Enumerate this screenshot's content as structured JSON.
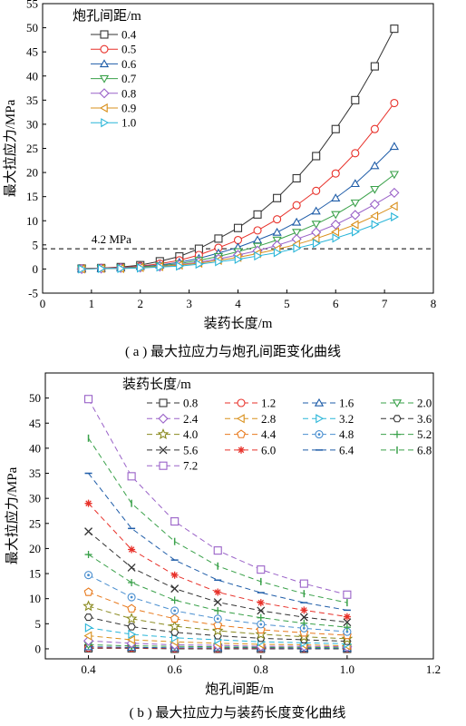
{
  "chart_data": [
    {
      "type": "line",
      "caption": "( a ) 最大拉应力与炮孔间距变化曲线",
      "xlabel": "装药长度/m",
      "ylabel": "最大拉应力/MPa",
      "xlim": [
        0,
        8
      ],
      "ylim": [
        -5,
        55
      ],
      "xticks": [
        0,
        1,
        2,
        3,
        4,
        5,
        6,
        7,
        8
      ],
      "yticks": [
        -5,
        0,
        5,
        10,
        15,
        20,
        25,
        30,
        35,
        40,
        45,
        50,
        55
      ],
      "legend_title": "炮孔间距/m",
      "legend_position": "top-left",
      "x": [
        0.8,
        1.2,
        1.6,
        2.0,
        2.4,
        2.8,
        3.2,
        3.6,
        4.0,
        4.4,
        4.8,
        5.2,
        5.6,
        6.0,
        6.4,
        6.8,
        7.2
      ],
      "series": [
        {
          "name": "0.4",
          "color": "#333333",
          "marker": "square",
          "values": [
            0.1,
            0.2,
            0.4,
            0.8,
            1.6,
            2.6,
            4.2,
            6.3,
            8.5,
            11.3,
            14.7,
            18.8,
            23.4,
            29.0,
            35.0,
            42.0,
            49.8
          ]
        },
        {
          "name": "0.5",
          "color": "#e8312a",
          "marker": "circle",
          "values": [
            0.1,
            0.2,
            0.3,
            0.6,
            1.1,
            1.8,
            2.9,
            4.4,
            6.0,
            8.0,
            10.3,
            13.2,
            16.2,
            19.8,
            24.0,
            29.0,
            34.4
          ]
        },
        {
          "name": "0.6",
          "color": "#1e5ca8",
          "marker": "triangle-up",
          "values": [
            0.0,
            0.1,
            0.2,
            0.5,
            0.8,
            1.4,
            2.2,
            3.3,
            4.5,
            6.0,
            7.6,
            9.7,
            12.0,
            14.7,
            17.7,
            21.4,
            25.4
          ]
        },
        {
          "name": "0.7",
          "color": "#3aa14a",
          "marker": "triangle-down",
          "values": [
            0.0,
            0.1,
            0.2,
            0.4,
            0.7,
            1.1,
            1.8,
            2.6,
            3.6,
            4.7,
            6.0,
            7.6,
            9.3,
            11.3,
            13.7,
            16.5,
            19.6
          ]
        },
        {
          "name": "0.8",
          "color": "#9a62c8",
          "marker": "diamond",
          "values": [
            0.0,
            0.1,
            0.2,
            0.3,
            0.5,
            0.9,
            1.4,
            2.1,
            2.9,
            3.8,
            4.9,
            6.2,
            7.6,
            9.2,
            11.2,
            13.4,
            15.8
          ]
        },
        {
          "name": "0.9",
          "color": "#d9901c",
          "marker": "triangle-left",
          "values": [
            0.0,
            0.1,
            0.1,
            0.3,
            0.5,
            0.8,
            1.2,
            1.8,
            2.4,
            3.2,
            4.1,
            5.1,
            6.3,
            7.7,
            9.2,
            11.0,
            13.0
          ]
        },
        {
          "name": "1.0",
          "color": "#29b5d8",
          "marker": "triangle-right",
          "values": [
            0.0,
            0.1,
            0.1,
            0.2,
            0.4,
            0.6,
            1.0,
            1.5,
            2.0,
            2.7,
            3.4,
            4.3,
            5.3,
            6.4,
            7.7,
            9.2,
            10.8
          ]
        }
      ],
      "annotations": [
        {
          "text": "4.2 MPa",
          "y": 4.2,
          "style": "dashed horizontal line"
        }
      ]
    },
    {
      "type": "line",
      "caption": "( b ) 最大拉应力与装药长度变化曲线",
      "xlabel": "炮孔间距/m",
      "ylabel": "最大拉应力/MPa",
      "xlim": [
        0.3,
        1.2
      ],
      "ylim": [
        -2,
        55
      ],
      "xticks": [
        0.4,
        0.6,
        0.8,
        1.0,
        1.2
      ],
      "yticks": [
        0,
        5,
        10,
        15,
        20,
        25,
        30,
        35,
        40,
        45,
        50
      ],
      "legend_title": "装药长度/m",
      "legend_position": "top",
      "x": [
        0.4,
        0.5,
        0.6,
        0.7,
        0.8,
        0.9,
        1.0
      ],
      "series": [
        {
          "name": "0.8",
          "color": "#333333",
          "marker": "square",
          "values": [
            0.1,
            0.1,
            0.0,
            0.0,
            0.0,
            0.0,
            0.0
          ]
        },
        {
          "name": "1.2",
          "color": "#e8312a",
          "marker": "circle",
          "values": [
            0.2,
            0.2,
            0.1,
            0.1,
            0.1,
            0.1,
            0.1
          ]
        },
        {
          "name": "1.6",
          "color": "#1e5ca8",
          "marker": "triangle-up",
          "values": [
            0.4,
            0.3,
            0.2,
            0.2,
            0.2,
            0.1,
            0.1
          ]
        },
        {
          "name": "2.0",
          "color": "#3aa14a",
          "marker": "triangle-down",
          "values": [
            0.8,
            0.6,
            0.5,
            0.4,
            0.3,
            0.3,
            0.2
          ]
        },
        {
          "name": "2.4",
          "color": "#9a62c8",
          "marker": "diamond",
          "values": [
            1.6,
            1.1,
            0.8,
            0.7,
            0.5,
            0.5,
            0.4
          ]
        },
        {
          "name": "2.8",
          "color": "#d9901c",
          "marker": "triangle-left",
          "values": [
            2.6,
            1.8,
            1.4,
            1.1,
            0.9,
            0.8,
            0.6
          ]
        },
        {
          "name": "3.2",
          "color": "#29b5d8",
          "marker": "triangle-right",
          "values": [
            4.2,
            2.9,
            2.2,
            1.8,
            1.4,
            1.2,
            1.0
          ]
        },
        {
          "name": "3.6",
          "color": "#333333",
          "marker": "hexagon",
          "values": [
            6.3,
            4.4,
            3.3,
            2.6,
            2.1,
            1.8,
            1.5
          ]
        },
        {
          "name": "4.0",
          "color": "#8a8a1f",
          "marker": "star",
          "values": [
            8.5,
            6.0,
            4.5,
            3.6,
            2.9,
            2.4,
            2.0
          ]
        },
        {
          "name": "4.4",
          "color": "#e87a1e",
          "marker": "pentagon",
          "values": [
            11.3,
            8.0,
            6.0,
            4.7,
            3.8,
            3.2,
            2.7
          ]
        },
        {
          "name": "4.8",
          "color": "#4a8fd0",
          "marker": "circle-dot",
          "values": [
            14.7,
            10.3,
            7.6,
            6.0,
            4.9,
            4.1,
            3.4
          ]
        },
        {
          "name": "5.2",
          "color": "#3aa14a",
          "marker": "plus",
          "values": [
            18.8,
            13.2,
            9.7,
            7.6,
            6.2,
            5.1,
            4.3
          ]
        },
        {
          "name": "5.6",
          "color": "#333333",
          "marker": "x",
          "values": [
            23.4,
            16.2,
            12.0,
            9.3,
            7.6,
            6.3,
            5.3
          ]
        },
        {
          "name": "6.0",
          "color": "#e8312a",
          "marker": "asterisk",
          "values": [
            29.0,
            19.8,
            14.7,
            11.3,
            9.2,
            7.7,
            6.4
          ]
        },
        {
          "name": "6.4",
          "color": "#1e5ca8",
          "marker": "hline",
          "values": [
            35.0,
            24.0,
            17.7,
            13.7,
            11.2,
            9.2,
            7.7
          ]
        },
        {
          "name": "6.8",
          "color": "#3aa14a",
          "marker": "vline",
          "values": [
            42.0,
            29.0,
            21.4,
            16.5,
            13.4,
            11.0,
            9.2
          ]
        },
        {
          "name": "7.2",
          "color": "#9a62c8",
          "marker": "square",
          "values": [
            49.8,
            34.4,
            25.4,
            19.6,
            15.8,
            13.0,
            10.8
          ]
        }
      ]
    }
  ]
}
